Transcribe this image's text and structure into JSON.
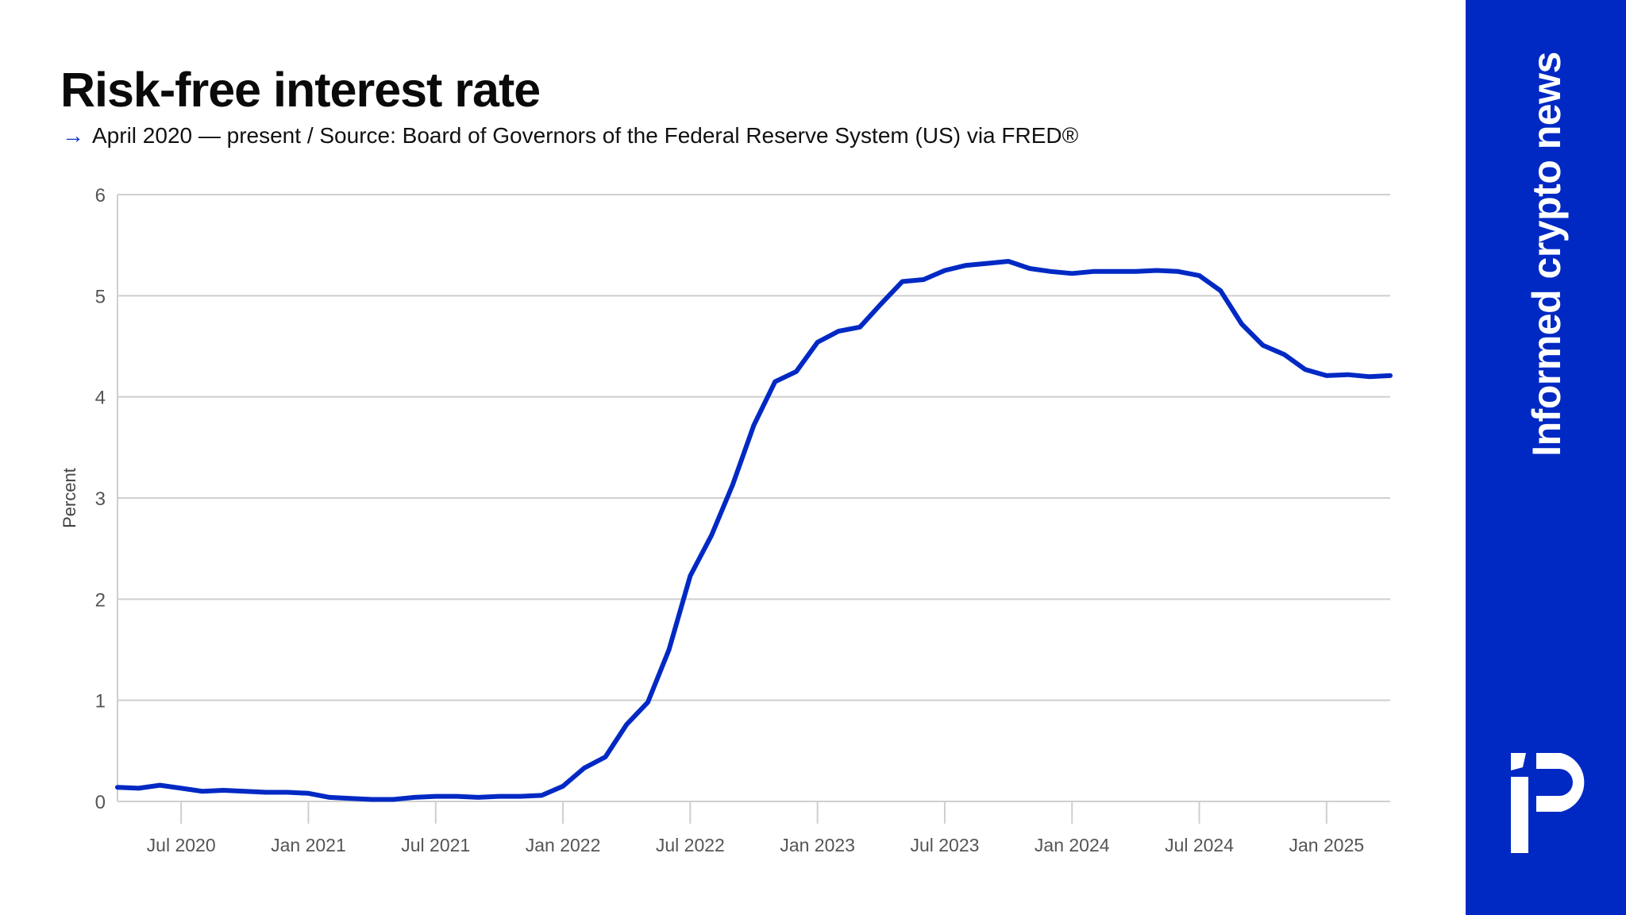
{
  "header": {
    "title": "Risk-free interest rate",
    "subtitle_arrow": "→",
    "subtitle": "April 2020 — present / Source: Board of Governors of the Federal Reserve System (US) via FRED®"
  },
  "brand": {
    "tagline": "Informed crypto news",
    "logo_icon": "ip-logo-icon",
    "color": "#0029c4"
  },
  "chart_data": {
    "type": "line",
    "title": "Risk-free interest rate",
    "subtitle": "April 2020 — present / Source: Board of Governors of the Federal Reserve System (US) via FRED®",
    "xlabel": "",
    "ylabel": "Percent",
    "ylim": [
      0,
      6
    ],
    "yticks": [
      "0",
      "1",
      "2",
      "3",
      "4",
      "5",
      "6"
    ],
    "xticks": [
      {
        "label": "Jul 2020",
        "index": 3
      },
      {
        "label": "Jan 2021",
        "index": 9
      },
      {
        "label": "Jul 2021",
        "index": 15
      },
      {
        "label": "Jan 2022",
        "index": 21
      },
      {
        "label": "Jul 2022",
        "index": 27
      },
      {
        "label": "Jan 2023",
        "index": 33
      },
      {
        "label": "Jul 2023",
        "index": 39
      },
      {
        "label": "Jan 2024",
        "index": 45
      },
      {
        "label": "Jul 2024",
        "index": 51
      },
      {
        "label": "Jan 2025",
        "index": 57
      }
    ],
    "grid": true,
    "legend": "none",
    "line_color": "#0029c4",
    "x_start": "Apr 2020",
    "x_end": "Apr 2025",
    "x_frequency": "monthly",
    "series": [
      {
        "name": "Risk-free interest rate",
        "values": [
          0.14,
          0.13,
          0.16,
          0.13,
          0.1,
          0.11,
          0.1,
          0.09,
          0.09,
          0.08,
          0.04,
          0.03,
          0.02,
          0.02,
          0.04,
          0.05,
          0.05,
          0.04,
          0.05,
          0.05,
          0.06,
          0.15,
          0.33,
          0.44,
          0.76,
          0.98,
          1.5,
          2.23,
          2.63,
          3.13,
          3.72,
          4.15,
          4.25,
          4.54,
          4.65,
          4.69,
          4.92,
          5.14,
          5.16,
          5.25,
          5.3,
          5.32,
          5.34,
          5.27,
          5.24,
          5.22,
          5.24,
          5.24,
          5.24,
          5.25,
          5.24,
          5.2,
          5.05,
          4.72,
          4.51,
          4.42,
          4.27,
          4.21,
          4.22,
          4.2,
          4.21
        ]
      }
    ]
  }
}
